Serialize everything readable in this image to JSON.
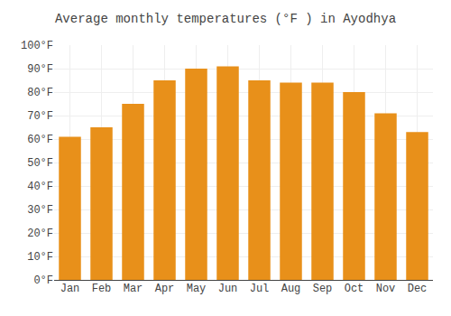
{
  "chart_data": {
    "type": "bar",
    "title": "Average monthly temperatures (°F ) in Ayodhya",
    "categories": [
      "Jan",
      "Feb",
      "Mar",
      "Apr",
      "May",
      "Jun",
      "Jul",
      "Aug",
      "Sep",
      "Oct",
      "Nov",
      "Dec"
    ],
    "values": [
      61,
      65,
      75,
      85,
      90,
      91,
      85,
      84,
      84,
      80,
      71,
      63
    ],
    "color": "#E8901A",
    "ylim": [
      0,
      100
    ],
    "yticks": [
      {
        "value": 0,
        "label": "0°F"
      },
      {
        "value": 10,
        "label": "10°F"
      },
      {
        "value": 20,
        "label": "20°F"
      },
      {
        "value": 30,
        "label": "30°F"
      },
      {
        "value": 40,
        "label": "40°F"
      },
      {
        "value": 50,
        "label": "50°F"
      },
      {
        "value": 60,
        "label": "60°F"
      },
      {
        "value": 70,
        "label": "70°F"
      },
      {
        "value": 80,
        "label": "80°F"
      },
      {
        "value": 90,
        "label": "90°F"
      },
      {
        "value": 100,
        "label": "100°F"
      }
    ],
    "grid": true
  }
}
